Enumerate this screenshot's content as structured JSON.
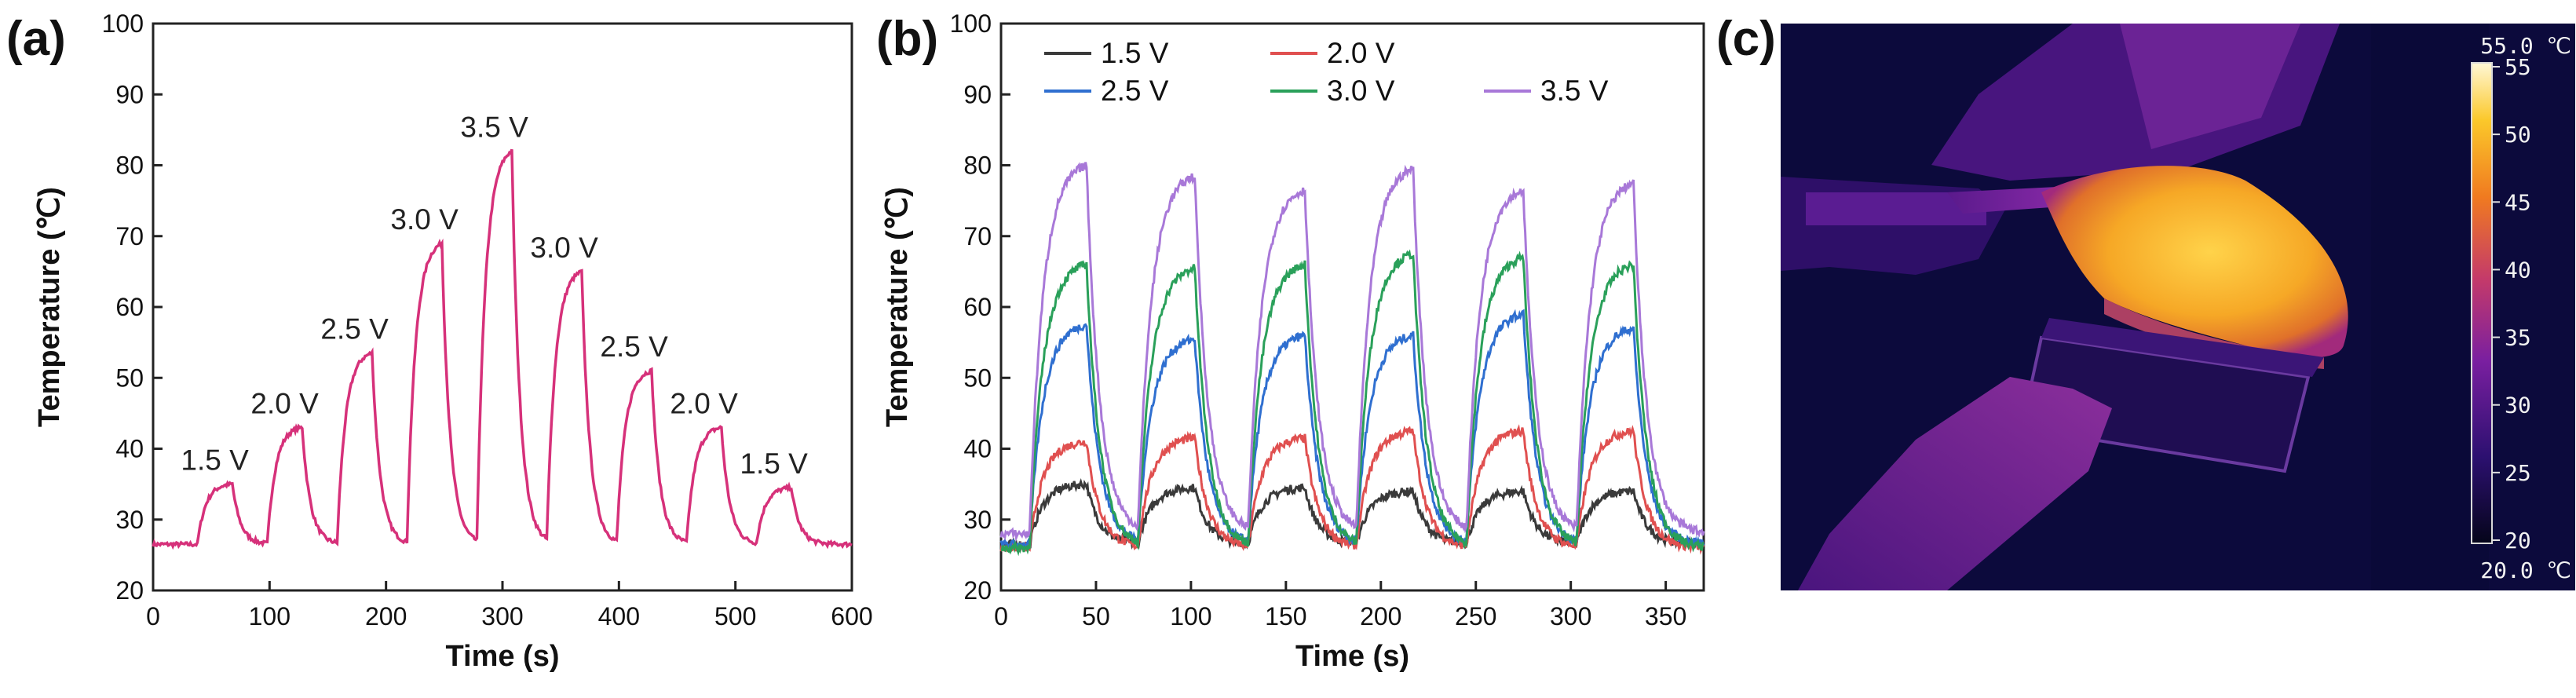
{
  "panel_labels": {
    "a": "(a)",
    "b": "(b)",
    "c": "(c)"
  },
  "chart_data": [
    {
      "id": "a",
      "type": "line",
      "xlabel": "Time (s)",
      "ylabel": "Temperature (℃)",
      "xlim": [
        0,
        600
      ],
      "ylim": [
        20,
        100
      ],
      "xticks": [
        0,
        100,
        200,
        300,
        400,
        500,
        600
      ],
      "yticks": [
        20,
        30,
        40,
        50,
        60,
        70,
        80,
        90,
        100
      ],
      "baseline": 26.5,
      "color": "#d6317a",
      "pulses": [
        {
          "start": 38,
          "end": 68,
          "peak": 35,
          "label": "1.5 V"
        },
        {
          "start": 98,
          "end": 128,
          "peak": 43,
          "label": "2.0 V"
        },
        {
          "start": 158,
          "end": 188,
          "peak": 53.5,
          "label": "2.5 V"
        },
        {
          "start": 218,
          "end": 248,
          "peak": 69,
          "label": "3.0 V"
        },
        {
          "start": 278,
          "end": 308,
          "peak": 82,
          "label": "3.5 V"
        },
        {
          "start": 338,
          "end": 368,
          "peak": 65,
          "label": "3.0 V"
        },
        {
          "start": 398,
          "end": 428,
          "peak": 51,
          "label": "2.5 V"
        },
        {
          "start": 458,
          "end": 488,
          "peak": 43,
          "label": "2.0 V"
        },
        {
          "start": 518,
          "end": 548,
          "peak": 34.5,
          "label": "1.5 V"
        }
      ]
    },
    {
      "id": "b",
      "type": "line",
      "xlabel": "Time (s)",
      "ylabel": "Temperature (℃)",
      "xlim": [
        0,
        370
      ],
      "ylim": [
        20,
        100
      ],
      "xticks": [
        0,
        50,
        100,
        150,
        200,
        250,
        300,
        350
      ],
      "yticks": [
        20,
        30,
        40,
        50,
        60,
        70,
        80,
        90,
        100
      ],
      "cycle_starts": [
        15,
        72,
        130,
        187,
        245,
        303
      ],
      "on_duration": 30,
      "series": [
        {
          "name": "1.5 V",
          "color": "#3a3a3a",
          "baseline": 26.5,
          "peaks": [
            35,
            34.5,
            34.5,
            34,
            34,
            34
          ]
        },
        {
          "name": "2.0 V",
          "color": "#e05050",
          "baseline": 26,
          "peaks": [
            41,
            41.5,
            41.5,
            42.5,
            42.5,
            42.5
          ]
        },
        {
          "name": "2.5 V",
          "color": "#2f6fd0",
          "baseline": 26.5,
          "peaks": [
            57.5,
            55.5,
            56,
            56,
            59,
            57
          ]
        },
        {
          "name": "3.0 V",
          "color": "#2aa05a",
          "baseline": 26,
          "peaks": [
            66,
            65.5,
            66,
            67.5,
            67,
            66
          ]
        },
        {
          "name": "3.5 V",
          "color": "#a878d8",
          "baseline": 28,
          "peaks": [
            80,
            78.5,
            76.5,
            79.5,
            76.5,
            77.5
          ]
        }
      ]
    }
  ],
  "thermal": {
    "colorbar_max_label": "55.0 ℃",
    "colorbar_min_label": "20.0 ℃",
    "colorbar_ticks": [
      "55",
      "50",
      "45",
      "40",
      "35",
      "30",
      "25",
      "20"
    ]
  }
}
